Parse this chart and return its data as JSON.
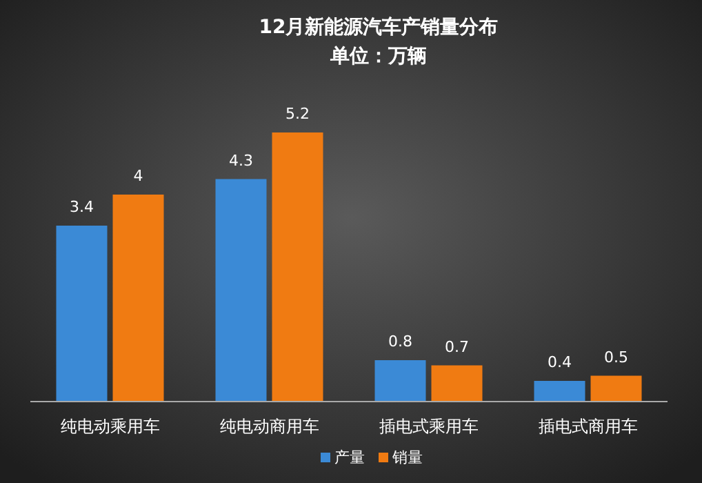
{
  "chart_data": {
    "type": "bar",
    "title": "12月新能源汽车产销量分布",
    "subtitle": "单位：万辆",
    "categories": [
      "纯电动乘用车",
      "纯电动商用车",
      "插电式乘用车",
      "插电式商用车"
    ],
    "series": [
      {
        "name": "产量",
        "color": "#3b8ad6",
        "values": [
          3.4,
          4.3,
          0.8,
          0.4
        ]
      },
      {
        "name": "销量",
        "color": "#f07b12",
        "values": [
          4,
          5.2,
          0.7,
          0.5
        ]
      }
    ],
    "data_labels": true,
    "legend": "bottom"
  }
}
